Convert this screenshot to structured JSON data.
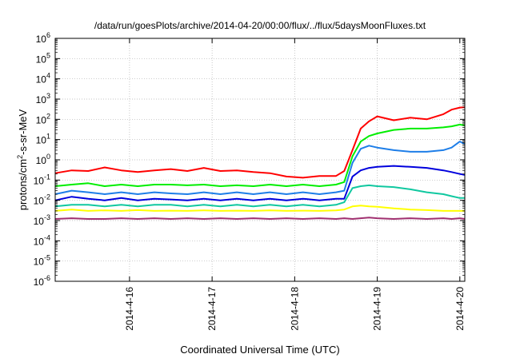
{
  "chart_data": {
    "type": "line",
    "title": "/data/run/goesPlots/archive/2014-04-20/00:00/flux/../flux/5daysMoonFluxes.txt",
    "xlabel": "Coordinated Universal Time (UTC)",
    "ylabel": "protons/cm²-s-sr-MeV",
    "yscale": "log",
    "ylim": [
      1e-06,
      1000000.0
    ],
    "xlim": [
      15.1,
      20.06
    ],
    "grid": true,
    "legend": "none",
    "x_ticks": [
      {
        "value": 16,
        "label": "2014-4-16"
      },
      {
        "value": 17,
        "label": "2014-4-17"
      },
      {
        "value": 18,
        "label": "2014-4-18"
      },
      {
        "value": 19,
        "label": "2014-4-19"
      },
      {
        "value": 20,
        "label": "2014-4-20"
      }
    ],
    "y_ticks": [
      {
        "value": 1e-06,
        "base": "10",
        "exp": "-6"
      },
      {
        "value": 1e-05,
        "base": "10",
        "exp": "-5"
      },
      {
        "value": 0.0001,
        "base": "10",
        "exp": "-4"
      },
      {
        "value": 0.001,
        "base": "10",
        "exp": "-3"
      },
      {
        "value": 0.01,
        "base": "10",
        "exp": "-2"
      },
      {
        "value": 0.1,
        "base": "10",
        "exp": "-1"
      },
      {
        "value": 1,
        "base": "10",
        "exp": "0"
      },
      {
        "value": 10.0,
        "base": "10",
        "exp": "1"
      },
      {
        "value": 100.0,
        "base": "10",
        "exp": "2"
      },
      {
        "value": 1000.0,
        "base": "10",
        "exp": "3"
      },
      {
        "value": 10000.0,
        "base": "10",
        "exp": "4"
      },
      {
        "value": 100000.0,
        "base": "10",
        "exp": "5"
      },
      {
        "value": 1000000.0,
        "base": "10",
        "exp": "6"
      }
    ],
    "series": [
      {
        "color": "#ff0000",
        "x": [
          15.1,
          15.3,
          15.5,
          15.7,
          15.9,
          16.1,
          16.3,
          16.5,
          16.7,
          16.9,
          17.1,
          17.3,
          17.5,
          17.7,
          17.9,
          18.1,
          18.3,
          18.5,
          18.6,
          18.7,
          18.8,
          18.9,
          19.0,
          19.2,
          19.4,
          19.6,
          19.8,
          19.9,
          20.0,
          20.06
        ],
        "y": [
          0.22,
          0.3,
          0.28,
          0.42,
          0.3,
          0.25,
          0.3,
          0.35,
          0.28,
          0.4,
          0.28,
          0.3,
          0.25,
          0.22,
          0.15,
          0.13,
          0.16,
          0.16,
          0.28,
          3,
          35,
          80,
          140,
          90,
          120,
          100,
          180,
          300,
          380,
          400
        ]
      },
      {
        "color": "#00ee00",
        "x": [
          15.1,
          15.3,
          15.5,
          15.7,
          15.9,
          16.1,
          16.3,
          16.5,
          16.7,
          16.9,
          17.1,
          17.3,
          17.5,
          17.7,
          17.9,
          18.1,
          18.3,
          18.5,
          18.6,
          18.7,
          18.8,
          18.9,
          19.0,
          19.2,
          19.4,
          19.6,
          19.8,
          19.9,
          20.0,
          20.06
        ],
        "y": [
          0.05,
          0.06,
          0.07,
          0.05,
          0.06,
          0.05,
          0.06,
          0.06,
          0.055,
          0.06,
          0.05,
          0.055,
          0.05,
          0.06,
          0.05,
          0.06,
          0.05,
          0.06,
          0.08,
          1.5,
          8,
          15,
          20,
          30,
          35,
          35,
          40,
          45,
          55,
          50
        ]
      },
      {
        "color": "#1e7ee8",
        "x": [
          15.1,
          15.3,
          15.5,
          15.7,
          15.9,
          16.1,
          16.3,
          16.5,
          16.7,
          16.9,
          17.1,
          17.3,
          17.5,
          17.7,
          17.9,
          18.1,
          18.3,
          18.5,
          18.6,
          18.7,
          18.8,
          18.9,
          19.0,
          19.2,
          19.4,
          19.6,
          19.8,
          19.9,
          20.0,
          20.06
        ],
        "y": [
          0.02,
          0.03,
          0.025,
          0.02,
          0.025,
          0.02,
          0.025,
          0.022,
          0.02,
          0.025,
          0.02,
          0.025,
          0.02,
          0.025,
          0.02,
          0.025,
          0.02,
          0.025,
          0.03,
          0.7,
          3.5,
          5,
          4,
          3,
          2.5,
          2.5,
          3,
          4,
          8,
          6
        ]
      },
      {
        "color": "#0000dd",
        "x": [
          15.1,
          15.3,
          15.5,
          15.7,
          15.9,
          16.1,
          16.3,
          16.5,
          16.7,
          16.9,
          17.1,
          17.3,
          17.5,
          17.7,
          17.9,
          18.1,
          18.3,
          18.5,
          18.6,
          18.7,
          18.8,
          18.9,
          19.0,
          19.2,
          19.4,
          19.6,
          19.8,
          19.9,
          20.0,
          20.06
        ],
        "y": [
          0.01,
          0.015,
          0.012,
          0.01,
          0.013,
          0.01,
          0.012,
          0.011,
          0.01,
          0.012,
          0.01,
          0.012,
          0.01,
          0.012,
          0.01,
          0.012,
          0.01,
          0.012,
          0.012,
          0.15,
          0.3,
          0.4,
          0.45,
          0.5,
          0.45,
          0.4,
          0.3,
          0.25,
          0.2,
          0.18
        ]
      },
      {
        "color": "#10c8a0",
        "x": [
          15.1,
          15.3,
          15.5,
          15.7,
          15.9,
          16.1,
          16.3,
          16.5,
          16.7,
          16.9,
          17.1,
          17.3,
          17.5,
          17.7,
          17.9,
          18.1,
          18.3,
          18.5,
          18.6,
          18.7,
          18.8,
          18.9,
          19.0,
          19.2,
          19.4,
          19.6,
          19.8,
          19.9,
          20.0,
          20.06
        ],
        "y": [
          0.005,
          0.006,
          0.006,
          0.005,
          0.006,
          0.005,
          0.006,
          0.006,
          0.005,
          0.006,
          0.005,
          0.006,
          0.005,
          0.006,
          0.005,
          0.006,
          0.005,
          0.006,
          0.008,
          0.04,
          0.05,
          0.055,
          0.05,
          0.045,
          0.035,
          0.025,
          0.02,
          0.016,
          0.013,
          0.013
        ]
      },
      {
        "color": "#ffff00",
        "x": [
          15.1,
          15.3,
          15.5,
          15.7,
          15.9,
          16.1,
          16.3,
          16.5,
          16.7,
          16.9,
          17.1,
          17.3,
          17.5,
          17.7,
          17.9,
          18.1,
          18.3,
          18.5,
          18.6,
          18.7,
          18.8,
          18.9,
          19.0,
          19.2,
          19.4,
          19.6,
          19.8,
          19.9,
          20.0,
          20.06
        ],
        "y": [
          0.003,
          0.0035,
          0.003,
          0.0032,
          0.003,
          0.0033,
          0.003,
          0.0031,
          0.003,
          0.0032,
          0.003,
          0.0031,
          0.003,
          0.0032,
          0.003,
          0.0031,
          0.003,
          0.0032,
          0.0035,
          0.005,
          0.0055,
          0.005,
          0.0048,
          0.004,
          0.0035,
          0.0033,
          0.003,
          0.003,
          0.003,
          0.003
        ]
      },
      {
        "color": "#a03070",
        "x": [
          15.1,
          15.3,
          15.5,
          15.7,
          15.9,
          16.1,
          16.3,
          16.5,
          16.7,
          16.9,
          17.1,
          17.3,
          17.5,
          17.7,
          17.9,
          18.1,
          18.3,
          18.5,
          18.6,
          18.7,
          18.8,
          18.9,
          19.0,
          19.2,
          19.4,
          19.6,
          19.8,
          19.9,
          20.0,
          20.06
        ],
        "y": [
          0.0012,
          0.0013,
          0.0012,
          0.0012,
          0.0013,
          0.0012,
          0.0013,
          0.0012,
          0.0013,
          0.0012,
          0.0013,
          0.0012,
          0.0013,
          0.0012,
          0.0013,
          0.0012,
          0.0013,
          0.0012,
          0.0013,
          0.0012,
          0.0013,
          0.0014,
          0.0013,
          0.0012,
          0.0013,
          0.0012,
          0.0013,
          0.0012,
          0.0013,
          0.0012
        ]
      }
    ]
  }
}
